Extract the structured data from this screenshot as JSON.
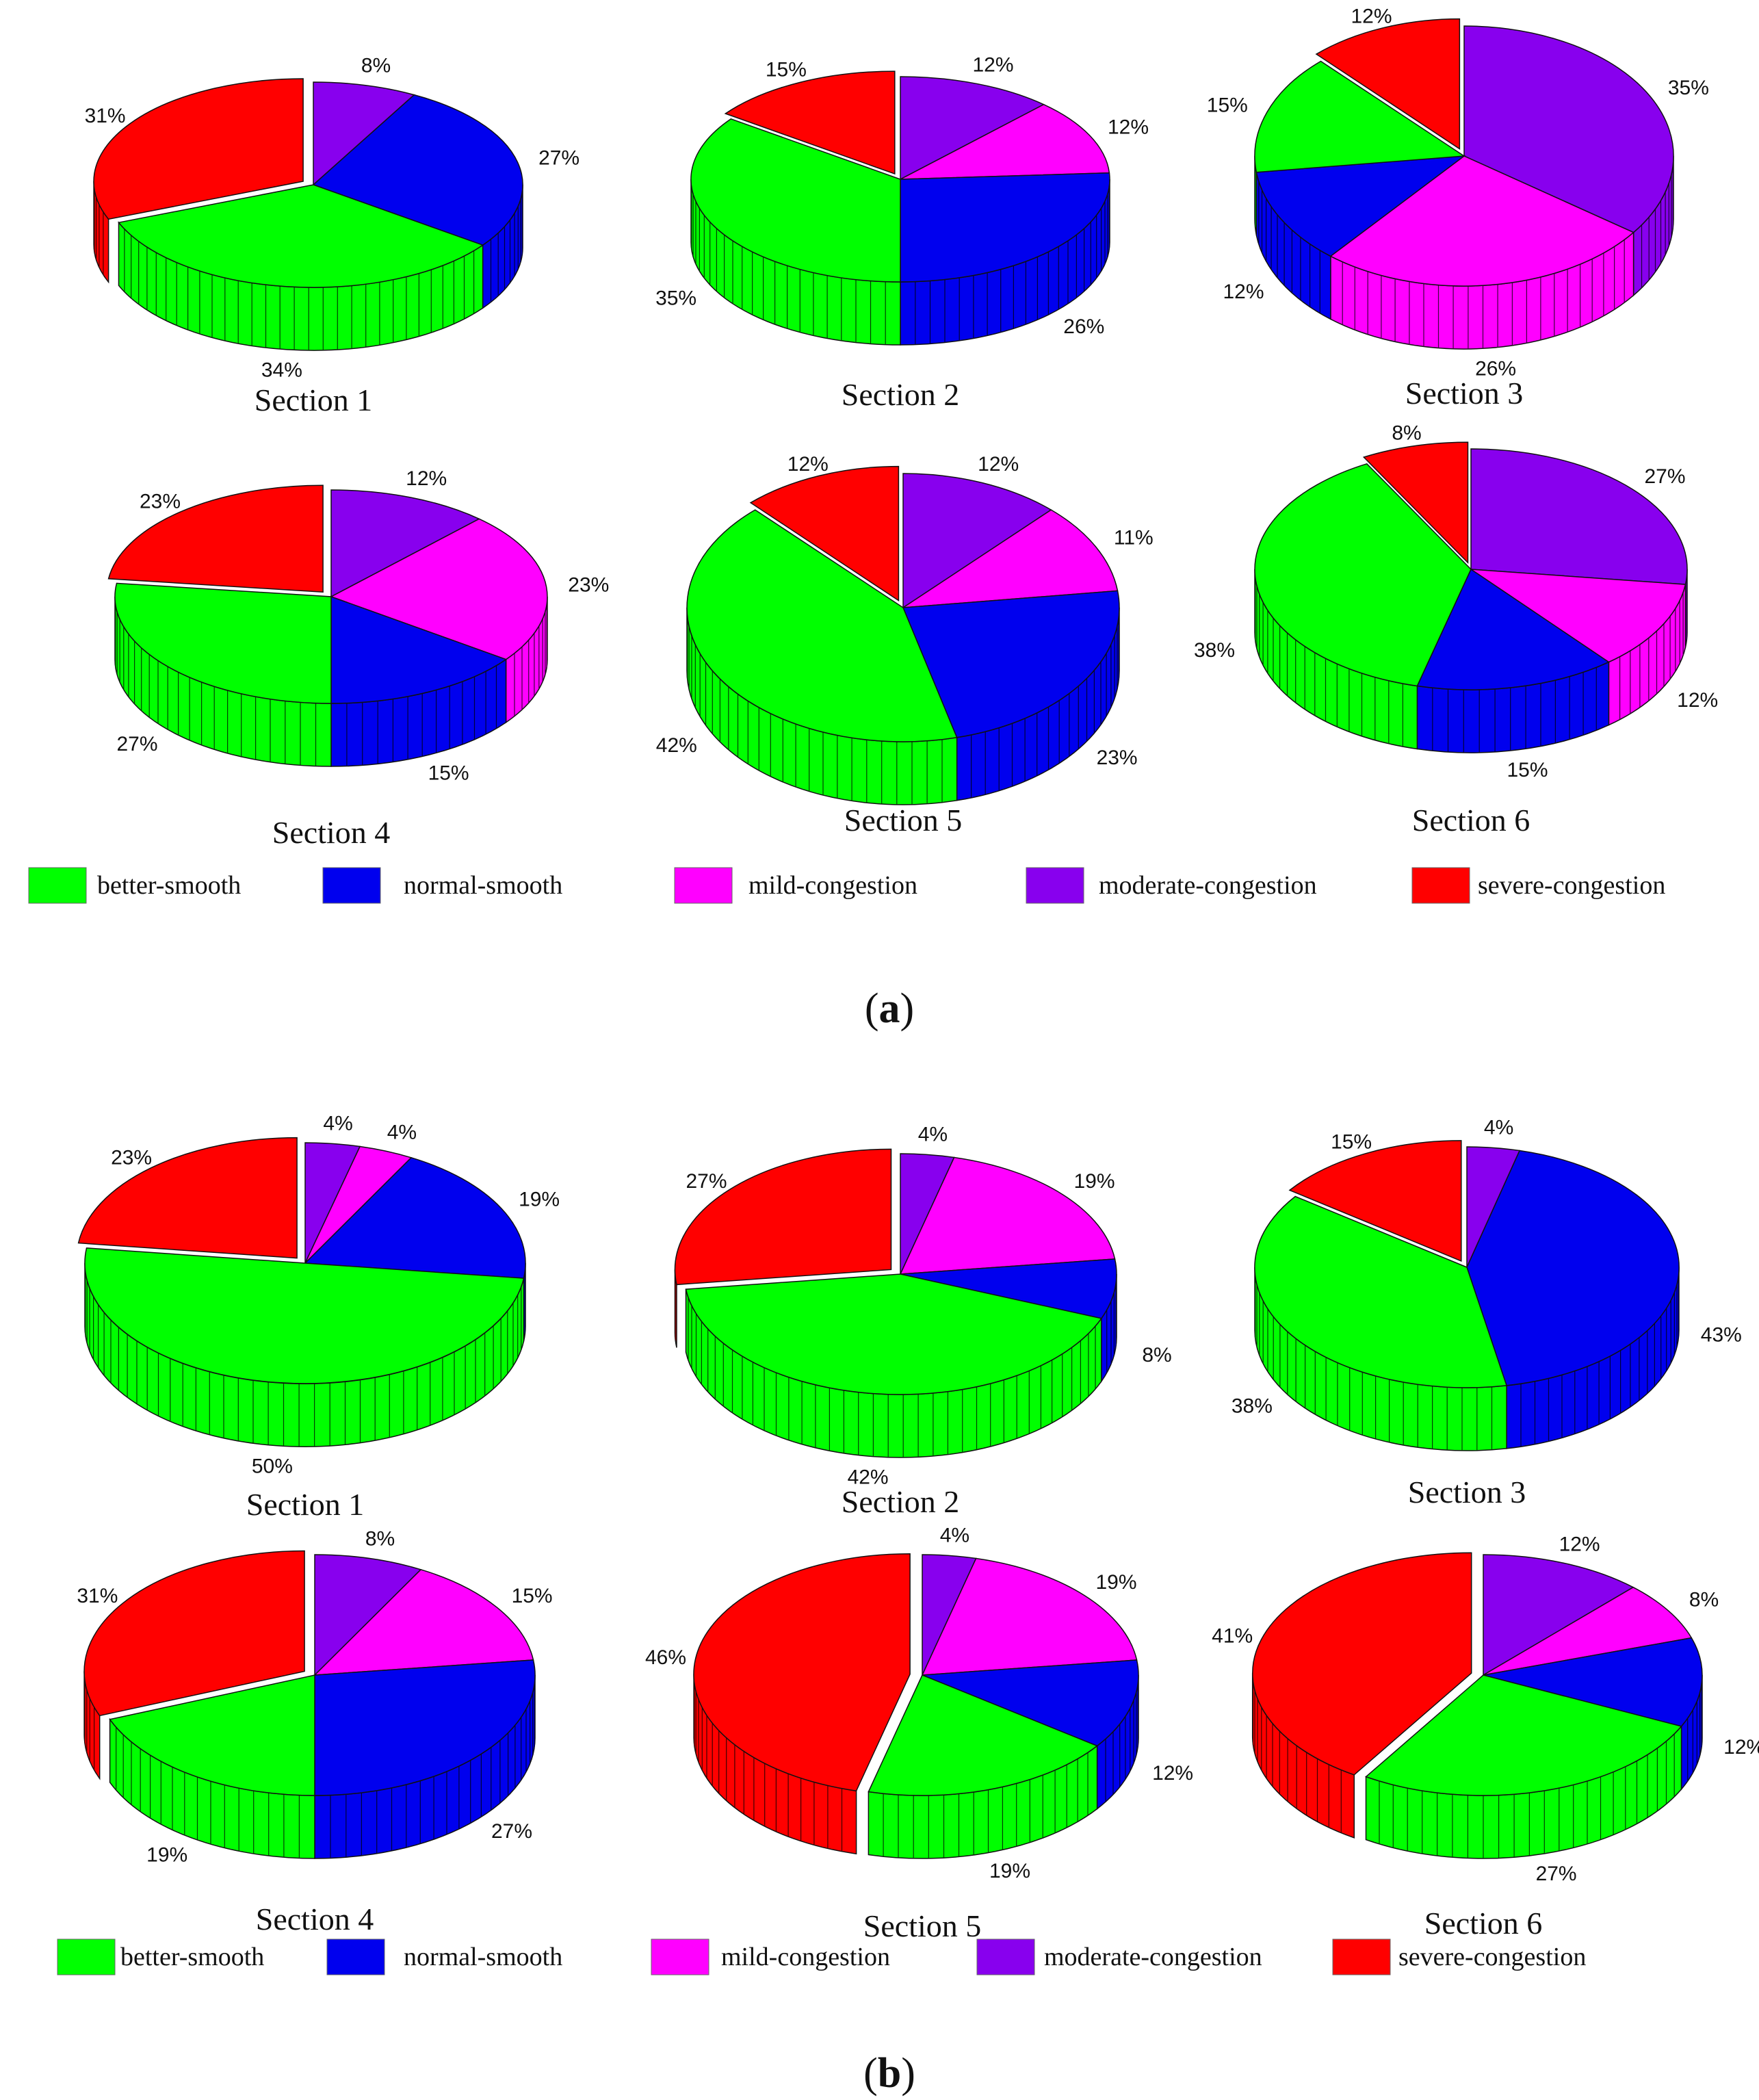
{
  "categories": [
    "better-smooth",
    "normal-smooth",
    "mild-congestion",
    "moderate-congestion",
    "severe-congestion"
  ],
  "colors": {
    "better-smooth": "#00ff00",
    "normal-smooth": "#0000ee",
    "mild-congestion": "#ff00ff",
    "moderate-congestion": "#8800ee",
    "severe-congestion": "#ff0000"
  },
  "legend": {
    "items": [
      "better-smooth",
      "normal-smooth",
      "mild-congestion",
      "moderate-congestion",
      "severe-congestion"
    ]
  },
  "panels": [
    {
      "label_open": "(",
      "label_letter": "a",
      "label_close": ")"
    },
    {
      "label_open": "(",
      "label_letter": "b",
      "label_close": ")"
    }
  ],
  "chart_data": [
    {
      "type": "pie",
      "panel": "a",
      "title": "Section 1",
      "categories": [
        "better-smooth",
        "normal-smooth",
        "mild-congestion",
        "moderate-congestion",
        "severe-congestion"
      ],
      "values": [
        34,
        27,
        0,
        8,
        31
      ],
      "labels": [
        "34%",
        "27%",
        "",
        "8%",
        "31%"
      ],
      "exploded": "severe-congestion"
    },
    {
      "type": "pie",
      "panel": "a",
      "title": "Section 2",
      "categories": [
        "better-smooth",
        "normal-smooth",
        "mild-congestion",
        "moderate-congestion",
        "severe-congestion"
      ],
      "values": [
        35,
        26,
        12,
        12,
        15
      ],
      "labels": [
        "35%",
        "26%",
        "12%",
        "12%",
        "15%"
      ],
      "exploded": "severe-congestion"
    },
    {
      "type": "pie",
      "panel": "a",
      "title": "Section 3",
      "categories": [
        "better-smooth",
        "normal-smooth",
        "mild-congestion",
        "moderate-congestion",
        "severe-congestion"
      ],
      "values": [
        15,
        12,
        26,
        35,
        12
      ],
      "labels": [
        "15%",
        "12%",
        "26%",
        "35%",
        "12%"
      ],
      "exploded": "severe-congestion"
    },
    {
      "type": "pie",
      "panel": "a",
      "title": "Section 4",
      "categories": [
        "better-smooth",
        "normal-smooth",
        "mild-congestion",
        "moderate-congestion",
        "severe-congestion"
      ],
      "values": [
        27,
        15,
        23,
        12,
        23
      ],
      "labels": [
        "27%",
        "15%",
        "23%",
        "12%",
        "23%"
      ],
      "exploded": "severe-congestion"
    },
    {
      "type": "pie",
      "panel": "a",
      "title": "Section 5",
      "categories": [
        "better-smooth",
        "normal-smooth",
        "mild-congestion",
        "moderate-congestion",
        "severe-congestion"
      ],
      "values": [
        42,
        23,
        11,
        12,
        12
      ],
      "labels": [
        "42%",
        "23%",
        "11%",
        "12%",
        "12%"
      ],
      "exploded": "severe-congestion"
    },
    {
      "type": "pie",
      "panel": "a",
      "title": "Section 6",
      "categories": [
        "better-smooth",
        "normal-smooth",
        "mild-congestion",
        "moderate-congestion",
        "severe-congestion"
      ],
      "values": [
        38,
        15,
        12,
        27,
        8
      ],
      "labels": [
        "38%",
        "15%",
        "12%",
        "27%",
        "8%"
      ],
      "exploded": "severe-congestion"
    },
    {
      "type": "pie",
      "panel": "b",
      "title": "Section 1",
      "categories": [
        "better-smooth",
        "normal-smooth",
        "mild-congestion",
        "moderate-congestion",
        "severe-congestion"
      ],
      "values": [
        50,
        19,
        4,
        4,
        23
      ],
      "labels": [
        "50%",
        "19%",
        "4%",
        "4%",
        "23%"
      ],
      "exploded": "severe-congestion"
    },
    {
      "type": "pie",
      "panel": "b",
      "title": "Section 2",
      "categories": [
        "better-smooth",
        "normal-smooth",
        "mild-congestion",
        "moderate-congestion",
        "severe-congestion"
      ],
      "values": [
        42,
        8,
        19,
        4,
        27
      ],
      "labels": [
        "42%",
        "8%",
        "19%",
        "4%",
        "27%"
      ],
      "exploded": "severe-congestion"
    },
    {
      "type": "pie",
      "panel": "b",
      "title": "Section 3",
      "categories": [
        "better-smooth",
        "normal-smooth",
        "mild-congestion",
        "moderate-congestion",
        "severe-congestion"
      ],
      "values": [
        38,
        43,
        0,
        4,
        15
      ],
      "labels": [
        "38%",
        "43%",
        "",
        "4%",
        "15%"
      ],
      "exploded": "severe-congestion"
    },
    {
      "type": "pie",
      "panel": "b",
      "title": "Section 4",
      "categories": [
        "better-smooth",
        "normal-smooth",
        "mild-congestion",
        "moderate-congestion",
        "severe-congestion"
      ],
      "values": [
        19,
        27,
        15,
        8,
        31
      ],
      "labels": [
        "19%",
        "27%",
        "15%",
        "8%",
        "31%"
      ],
      "exploded": "severe-congestion"
    },
    {
      "type": "pie",
      "panel": "b",
      "title": "Section 5",
      "categories": [
        "better-smooth",
        "normal-smooth",
        "mild-congestion",
        "moderate-congestion",
        "severe-congestion"
      ],
      "values": [
        19,
        12,
        19,
        4,
        46
      ],
      "labels": [
        "19%",
        "12%",
        "19%",
        "4%",
        "46%"
      ],
      "exploded": "severe-congestion"
    },
    {
      "type": "pie",
      "panel": "b",
      "title": "Section 6",
      "categories": [
        "better-smooth",
        "normal-smooth",
        "mild-congestion",
        "moderate-congestion",
        "severe-congestion"
      ],
      "values": [
        27,
        12,
        8,
        12,
        41
      ],
      "labels": [
        "27%",
        "12%",
        "8%",
        "12%",
        "41%"
      ],
      "exploded": "severe-congestion"
    }
  ]
}
